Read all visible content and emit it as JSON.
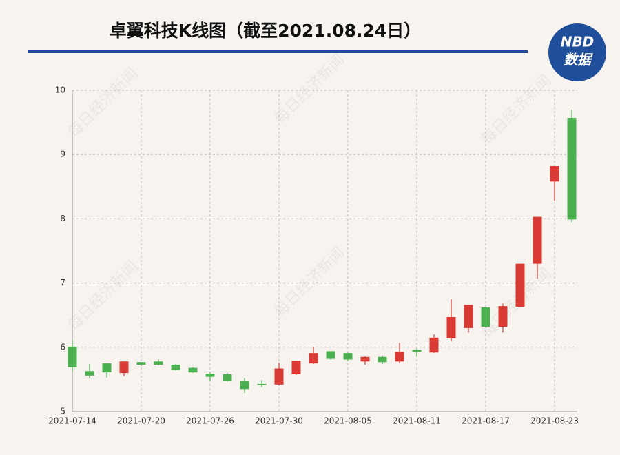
{
  "chart_data": {
    "type": "candlestick",
    "title": "卓翼科技K线图（截至2021.08.24日）",
    "logo": {
      "top": "NBD",
      "bottom": "数据"
    },
    "watermark": "每日经济新闻",
    "categories": [
      "2021-07-14",
      null,
      null,
      null,
      "2021-07-20",
      null,
      null,
      null,
      "2021-07-26",
      null,
      null,
      null,
      "2021-07-30",
      null,
      null,
      null,
      "2021-08-05",
      null,
      null,
      null,
      "2021-08-11",
      null,
      null,
      null,
      "2021-08-17",
      null,
      null,
      null,
      "2021-08-23",
      null
    ],
    "open": [
      6.01,
      5.63,
      5.75,
      5.6,
      5.77,
      5.78,
      5.73,
      5.68,
      5.59,
      5.58,
      5.48,
      5.43,
      5.42,
      5.58,
      5.75,
      5.94,
      5.91,
      5.78,
      5.85,
      5.78,
      5.96,
      5.92,
      6.14,
      6.3,
      6.62,
      6.32,
      6.63,
      7.3,
      8.58,
      9.57
    ],
    "high": [
      6.11,
      5.74,
      5.75,
      5.78,
      5.77,
      5.81,
      5.74,
      5.69,
      5.61,
      5.6,
      5.52,
      5.49,
      5.76,
      5.79,
      6.0,
      5.94,
      5.92,
      5.86,
      5.87,
      6.07,
      5.98,
      6.2,
      6.75,
      6.66,
      6.63,
      6.68,
      7.3,
      8.03,
      8.82,
      9.7
    ],
    "low": [
      5.62,
      5.52,
      5.53,
      5.55,
      5.71,
      5.72,
      5.64,
      5.6,
      5.48,
      5.47,
      5.29,
      5.38,
      5.41,
      5.57,
      5.74,
      5.81,
      5.79,
      5.73,
      5.74,
      5.75,
      5.85,
      5.91,
      6.09,
      6.23,
      6.31,
      6.23,
      6.63,
      7.07,
      8.28,
      7.95
    ],
    "close": [
      5.69,
      5.56,
      5.61,
      5.78,
      5.73,
      5.73,
      5.65,
      5.61,
      5.54,
      5.48,
      5.35,
      5.41,
      5.67,
      5.79,
      5.91,
      5.82,
      5.81,
      5.85,
      5.77,
      5.93,
      5.93,
      6.15,
      6.47,
      6.66,
      6.32,
      6.64,
      7.3,
      8.03,
      8.82,
      7.99
    ],
    "up_color": "#d93a33",
    "down_color": "#4caf50",
    "ylim": [
      5,
      10
    ],
    "yticks": [
      5,
      6,
      7,
      8,
      9,
      10
    ],
    "grid": true
  }
}
